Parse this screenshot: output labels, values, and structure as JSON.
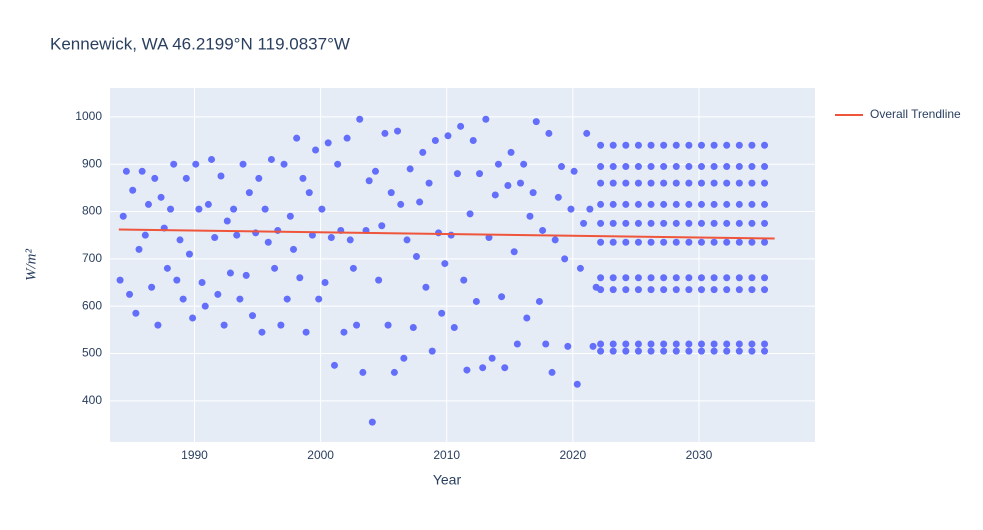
{
  "chart_data": {
    "type": "scatter",
    "title": "Kennewick, WA 46.2199°N 119.0837°W",
    "x_label": "Year",
    "y_label": "W/m²",
    "xlim": [
      1983.3,
      2039.2
    ],
    "ylim": [
      313,
      1061
    ],
    "xticks": [
      1990,
      2000,
      2010,
      2020,
      2030
    ],
    "yticks": [
      400,
      500,
      600,
      700,
      800,
      900,
      1000
    ],
    "grid": true,
    "legend": "right",
    "series": [
      {
        "type": "scatter",
        "color": "#636efa",
        "x": [
          1984.1,
          1984.35,
          1984.6,
          1984.85,
          1985.1,
          1985.35,
          1985.6,
          1985.85,
          1986.1,
          1986.35,
          1986.6,
          1986.85,
          1987.1,
          1987.35,
          1987.6,
          1987.85,
          1988.1,
          1988.35,
          1988.6,
          1988.85,
          1989.1,
          1989.35,
          1989.6,
          1989.85,
          1990.1,
          1990.35,
          1990.6,
          1990.85,
          1991.1,
          1991.35,
          1991.6,
          1991.85,
          1992.1,
          1992.35,
          1992.6,
          1992.85,
          1993.1,
          1993.35,
          1993.6,
          1993.85,
          1994.1,
          1994.35,
          1994.6,
          1994.85,
          1995.1,
          1995.35,
          1995.6,
          1995.85,
          1996.1,
          1996.35,
          1996.6,
          1996.85,
          1997.1,
          1997.35,
          1997.6,
          1997.85,
          1998.1,
          1998.35,
          1998.6,
          1998.85,
          1999.1,
          1999.35,
          1999.6,
          1999.85,
          2000.1,
          2000.35,
          2000.6,
          2000.85,
          2001.1,
          2001.35,
          2001.6,
          2001.85,
          2002.1,
          2002.35,
          2002.6,
          2002.85,
          2003.1,
          2003.35,
          2003.6,
          2003.85,
          2004.1,
          2004.35,
          2004.6,
          2004.85,
          2005.1,
          2005.35,
          2005.6,
          2005.85,
          2006.1,
          2006.35,
          2006.6,
          2006.85,
          2007.1,
          2007.35,
          2007.6,
          2007.85,
          2008.1,
          2008.35,
          2008.6,
          2008.85,
          2009.1,
          2009.35,
          2009.6,
          2009.85,
          2010.1,
          2010.35,
          2010.6,
          2010.85,
          2011.1,
          2011.35,
          2011.6,
          2011.85,
          2012.1,
          2012.35,
          2012.6,
          2012.85,
          2013.1,
          2013.35,
          2013.6,
          2013.85,
          2014.1,
          2014.35,
          2014.6,
          2014.85,
          2015.1,
          2015.35,
          2015.6,
          2015.85,
          2016.1,
          2016.35,
          2016.6,
          2016.85,
          2017.1,
          2017.35,
          2017.6,
          2017.85,
          2018.1,
          2018.35,
          2018.6,
          2018.85,
          2019.1,
          2019.35,
          2019.6,
          2019.85,
          2020.1,
          2020.35,
          2020.6,
          2020.85,
          2021.1,
          2021.35,
          2021.6,
          2021.85,
          2022.2,
          2022.2,
          2022.2,
          2022.2,
          2022.2,
          2022.2,
          2022.2,
          2022.2,
          2022.2,
          2022.2,
          2023.2,
          2023.2,
          2023.2,
          2023.2,
          2023.2,
          2023.2,
          2023.2,
          2023.2,
          2023.2,
          2023.2,
          2024.2,
          2024.2,
          2024.2,
          2024.2,
          2024.2,
          2024.2,
          2024.2,
          2024.2,
          2024.2,
          2024.2,
          2025.2,
          2025.2,
          2025.2,
          2025.2,
          2025.2,
          2025.2,
          2025.2,
          2025.2,
          2025.2,
          2025.2,
          2026.2,
          2026.2,
          2026.2,
          2026.2,
          2026.2,
          2026.2,
          2026.2,
          2026.2,
          2026.2,
          2026.2,
          2027.2,
          2027.2,
          2027.2,
          2027.2,
          2027.2,
          2027.2,
          2027.2,
          2027.2,
          2027.2,
          2027.2,
          2028.2,
          2028.2,
          2028.2,
          2028.2,
          2028.2,
          2028.2,
          2028.2,
          2028.2,
          2028.2,
          2028.2,
          2029.2,
          2029.2,
          2029.2,
          2029.2,
          2029.2,
          2029.2,
          2029.2,
          2029.2,
          2029.2,
          2029.2,
          2030.2,
          2030.2,
          2030.2,
          2030.2,
          2030.2,
          2030.2,
          2030.2,
          2030.2,
          2030.2,
          2030.2,
          2031.2,
          2031.2,
          2031.2,
          2031.2,
          2031.2,
          2031.2,
          2031.2,
          2031.2,
          2031.2,
          2031.2,
          2032.2,
          2032.2,
          2032.2,
          2032.2,
          2032.2,
          2032.2,
          2032.2,
          2032.2,
          2032.2,
          2032.2,
          2033.2,
          2033.2,
          2033.2,
          2033.2,
          2033.2,
          2033.2,
          2033.2,
          2033.2,
          2033.2,
          2033.2,
          2034.2,
          2034.2,
          2034.2,
          2034.2,
          2034.2,
          2034.2,
          2034.2,
          2034.2,
          2034.2,
          2034.2,
          2035.2,
          2035.2,
          2035.2,
          2035.2,
          2035.2,
          2035.2,
          2035.2,
          2035.2,
          2035.2,
          2035.2
        ],
        "values": [
          655,
          790,
          885,
          625,
          845,
          585,
          720,
          885,
          750,
          815,
          640,
          870,
          560,
          830,
          765,
          680,
          805,
          900,
          655,
          740,
          615,
          870,
          710,
          575,
          900,
          805,
          650,
          600,
          815,
          910,
          745,
          625,
          875,
          560,
          780,
          670,
          805,
          750,
          615,
          900,
          665,
          840,
          580,
          755,
          870,
          545,
          805,
          735,
          910,
          680,
          760,
          560,
          900,
          615,
          790,
          720,
          955,
          660,
          870,
          545,
          840,
          750,
          930,
          615,
          805,
          650,
          945,
          745,
          475,
          900,
          760,
          545,
          955,
          740,
          680,
          560,
          995,
          460,
          760,
          865,
          355,
          885,
          655,
          770,
          965,
          560,
          840,
          460,
          970,
          815,
          490,
          740,
          890,
          555,
          705,
          820,
          925,
          640,
          860,
          505,
          950,
          755,
          585,
          690,
          960,
          750,
          555,
          880,
          980,
          655,
          465,
          795,
          950,
          610,
          880,
          470,
          995,
          745,
          490,
          835,
          900,
          620,
          470,
          855,
          925,
          715,
          520,
          860,
          900,
          575,
          790,
          840,
          990,
          610,
          760,
          520,
          965,
          460,
          740,
          830,
          895,
          700,
          515,
          805,
          885,
          435,
          680,
          775,
          965,
          805,
          515,
          640,
          505,
          520,
          635,
          660,
          735,
          775,
          815,
          860,
          895,
          940,
          505,
          520,
          635,
          660,
          735,
          775,
          815,
          860,
          895,
          940,
          505,
          520,
          635,
          660,
          735,
          775,
          815,
          860,
          895,
          940,
          505,
          520,
          635,
          660,
          735,
          775,
          815,
          860,
          895,
          940,
          505,
          520,
          635,
          660,
          735,
          775,
          815,
          860,
          895,
          940,
          505,
          520,
          635,
          660,
          735,
          775,
          815,
          860,
          895,
          940,
          505,
          520,
          635,
          660,
          735,
          775,
          815,
          860,
          895,
          940,
          505,
          520,
          635,
          660,
          735,
          775,
          815,
          860,
          895,
          940,
          505,
          520,
          635,
          660,
          735,
          775,
          815,
          860,
          895,
          940,
          505,
          520,
          635,
          660,
          735,
          775,
          815,
          860,
          895,
          940,
          505,
          520,
          635,
          660,
          735,
          775,
          815,
          860,
          895,
          940,
          505,
          520,
          635,
          660,
          735,
          775,
          815,
          860,
          895,
          940,
          505,
          520,
          635,
          660,
          735,
          775,
          815,
          860,
          895,
          940,
          505,
          520,
          635,
          660,
          735,
          775,
          815,
          860,
          895,
          940
        ]
      },
      {
        "type": "line",
        "name": "Overall Trendline",
        "color": "#ef553b",
        "x": [
          1984,
          2036
        ],
        "values": [
          762,
          743
        ]
      }
    ]
  }
}
